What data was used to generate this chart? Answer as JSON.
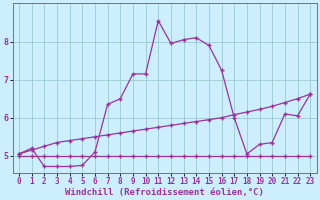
{
  "xlabel": "Windchill (Refroidissement éolien,°C)",
  "bg_color": "#cceeff",
  "line_color": "#993399",
  "grid_color": "#99cccc",
  "spine_color": "#667788",
  "xlim": [
    -0.5,
    23.5
  ],
  "ylim": [
    4.55,
    9.0
  ],
  "yticks": [
    5,
    6,
    7,
    8
  ],
  "xticks": [
    0,
    1,
    2,
    3,
    4,
    5,
    6,
    7,
    8,
    9,
    10,
    11,
    12,
    13,
    14,
    15,
    16,
    17,
    18,
    19,
    20,
    21,
    22,
    23
  ],
  "line1_x": [
    0,
    1,
    2,
    3,
    4,
    5,
    6,
    7,
    8,
    9,
    10,
    11,
    12,
    13,
    14,
    15,
    16,
    17,
    18,
    19,
    20,
    21,
    22,
    23
  ],
  "line1_y": [
    5.05,
    5.15,
    5.25,
    5.35,
    5.4,
    5.45,
    5.5,
    5.55,
    5.6,
    5.65,
    5.7,
    5.75,
    5.8,
    5.85,
    5.9,
    5.95,
    6.0,
    6.08,
    6.15,
    6.22,
    6.3,
    6.4,
    6.5,
    6.62
  ],
  "line2_x": [
    0,
    1,
    2,
    3,
    4,
    5,
    6,
    7,
    8,
    9,
    10,
    11,
    12,
    13,
    14,
    15,
    16,
    17,
    18,
    19,
    20,
    21,
    22,
    23
  ],
  "line2_y": [
    5.05,
    5.2,
    4.72,
    4.72,
    4.72,
    4.75,
    5.1,
    6.35,
    6.5,
    7.15,
    7.15,
    8.55,
    7.95,
    8.05,
    8.1,
    7.9,
    7.25,
    6.0,
    5.05,
    5.3,
    5.35,
    6.1,
    6.05,
    6.62
  ],
  "line3_x": [
    0,
    1,
    2,
    3,
    4,
    5,
    6,
    7,
    8,
    9,
    10,
    11,
    12,
    13,
    14,
    15,
    16,
    17,
    18,
    19,
    20,
    21,
    22,
    23
  ],
  "line3_y": [
    5.0,
    5.0,
    5.0,
    5.0,
    5.0,
    5.0,
    5.0,
    5.0,
    5.0,
    5.0,
    5.0,
    5.0,
    5.0,
    5.0,
    5.0,
    5.0,
    5.0,
    5.0,
    5.0,
    5.0,
    5.0,
    5.0,
    5.0,
    5.0
  ],
  "xlabel_fontsize": 6.5,
  "tick_fontsize": 5.5,
  "linewidth": 0.9,
  "markersize": 3.0
}
